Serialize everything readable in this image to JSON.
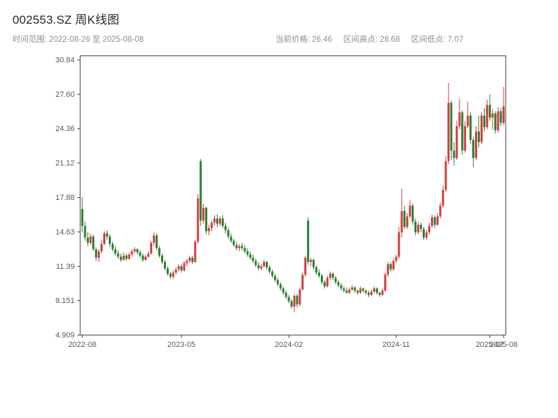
{
  "page": {
    "title": "002553.SZ 周K线图"
  },
  "subheader": {
    "range": "时间范围: 2022-08-26 至 2025-08-08",
    "stats": {
      "current": "当前价格: 26.46",
      "high": "区间高点: 28.68",
      "low": "区间低点: 7.07"
    }
  },
  "chart_data": {
    "type": "candlestick",
    "symbol": "002553.SZ",
    "chart_title": "002553.SZ 周K线图",
    "interval": "weekly",
    "start_date": "2022-08-26",
    "end_date": "2025-08-08",
    "current_price": 26.46,
    "range_high": 28.68,
    "range_low": 7.07,
    "ylim": [
      4.909,
      30.84
    ],
    "grid": false,
    "legend": false,
    "ytick_labels": [
      "30.84",
      "27.60",
      "24.36",
      "21.12",
      "17.88",
      "14.63",
      "11.39",
      "8.151",
      "4.909"
    ],
    "xticks": [
      {
        "pos": 0,
        "label": "2022-08"
      },
      {
        "pos": 36,
        "label": "2023-05"
      },
      {
        "pos": 75,
        "label": "2024-02"
      },
      {
        "pos": 114,
        "label": "2024-11"
      },
      {
        "pos": 148,
        "label": "2025-07"
      },
      {
        "pos": 153,
        "label": "2025-08"
      }
    ],
    "colors": {
      "up": "#cf3d3d",
      "down": "#2e7d32",
      "axis": "#3a3a3a",
      "tick_text": "#595959"
    },
    "candles": [
      [
        16.8,
        17.9,
        14.6,
        15.2
      ],
      [
        15.2,
        15.6,
        13.8,
        14.1
      ],
      [
        14.1,
        14.6,
        13.3,
        13.6
      ],
      [
        13.6,
        14.5,
        13.4,
        14.2
      ],
      [
        14.2,
        14.4,
        12.8,
        13.0
      ],
      [
        13.0,
        13.2,
        11.9,
        12.2
      ],
      [
        12.2,
        13.0,
        11.8,
        12.8
      ],
      [
        12.8,
        13.8,
        12.6,
        13.5
      ],
      [
        13.5,
        14.7,
        13.4,
        14.5
      ],
      [
        14.5,
        14.8,
        13.9,
        14.2
      ],
      [
        14.2,
        14.4,
        13.2,
        13.5
      ],
      [
        13.5,
        13.7,
        12.8,
        13.0
      ],
      [
        13.0,
        13.3,
        12.4,
        12.6
      ],
      [
        12.6,
        12.9,
        12.1,
        12.3
      ],
      [
        12.3,
        12.6,
        11.8,
        12.0
      ],
      [
        12.0,
        12.7,
        11.9,
        12.4
      ],
      [
        12.4,
        12.6,
        11.9,
        12.1
      ],
      [
        12.1,
        12.7,
        12.0,
        12.5
      ],
      [
        12.5,
        13.0,
        12.3,
        12.8
      ],
      [
        12.8,
        13.2,
        12.6,
        13.0
      ],
      [
        13.0,
        13.1,
        12.5,
        12.7
      ],
      [
        12.7,
        12.9,
        12.2,
        12.4
      ],
      [
        12.4,
        12.6,
        11.8,
        12.0
      ],
      [
        12.0,
        12.5,
        11.9,
        12.3
      ],
      [
        12.3,
        12.8,
        12.2,
        12.6
      ],
      [
        12.6,
        13.8,
        12.5,
        13.6
      ],
      [
        13.6,
        14.6,
        13.3,
        14.3
      ],
      [
        14.3,
        14.5,
        12.9,
        13.1
      ],
      [
        13.1,
        13.3,
        12.2,
        12.4
      ],
      [
        12.4,
        12.6,
        11.6,
        11.8
      ],
      [
        11.8,
        12.0,
        11.0,
        11.2
      ],
      [
        11.2,
        11.4,
        10.5,
        10.7
      ],
      [
        10.7,
        10.9,
        10.2,
        10.4
      ],
      [
        10.4,
        11.0,
        10.2,
        10.8
      ],
      [
        10.8,
        11.3,
        10.6,
        11.1
      ],
      [
        11.1,
        11.6,
        10.9,
        11.4
      ],
      [
        11.4,
        11.6,
        10.8,
        11.0
      ],
      [
        11.0,
        11.9,
        10.9,
        11.7
      ],
      [
        11.7,
        12.1,
        11.4,
        11.9
      ],
      [
        11.9,
        12.4,
        11.7,
        12.2
      ],
      [
        12.2,
        12.4,
        11.6,
        11.8
      ],
      [
        11.8,
        13.9,
        11.7,
        13.7
      ],
      [
        13.7,
        18.2,
        13.5,
        17.8
      ],
      [
        21.3,
        21.5,
        15.2,
        15.7
      ],
      [
        15.7,
        17.3,
        15.4,
        16.9
      ],
      [
        16.9,
        17.0,
        14.4,
        14.7
      ],
      [
        14.7,
        15.3,
        14.3,
        15.0
      ],
      [
        15.0,
        15.7,
        14.7,
        15.5
      ],
      [
        15.5,
        16.2,
        15.2,
        15.9
      ],
      [
        15.9,
        16.3,
        15.1,
        15.4
      ],
      [
        15.4,
        16.1,
        15.2,
        15.9
      ],
      [
        15.9,
        16.2,
        15.0,
        15.2
      ],
      [
        15.2,
        15.5,
        14.5,
        14.8
      ],
      [
        14.8,
        15.0,
        14.0,
        14.2
      ],
      [
        14.2,
        14.5,
        13.6,
        13.8
      ],
      [
        13.8,
        14.0,
        13.2,
        13.4
      ],
      [
        13.4,
        13.7,
        12.9,
        13.1
      ],
      [
        13.1,
        13.5,
        12.8,
        13.3
      ],
      [
        13.3,
        13.6,
        12.9,
        13.1
      ],
      [
        13.1,
        13.4,
        12.6,
        12.8
      ],
      [
        12.8,
        13.1,
        12.3,
        12.5
      ],
      [
        12.5,
        12.8,
        12.0,
        12.2
      ],
      [
        12.2,
        12.5,
        11.7,
        11.9
      ],
      [
        11.9,
        12.1,
        11.3,
        11.5
      ],
      [
        11.5,
        11.8,
        11.0,
        11.2
      ],
      [
        11.2,
        11.6,
        11.0,
        11.4
      ],
      [
        11.4,
        12.0,
        11.3,
        11.8
      ],
      [
        11.8,
        11.9,
        11.1,
        11.3
      ],
      [
        11.3,
        11.5,
        10.7,
        10.9
      ],
      [
        10.9,
        11.1,
        10.3,
        10.5
      ],
      [
        10.5,
        10.7,
        9.9,
        10.1
      ],
      [
        10.1,
        10.3,
        9.5,
        9.7
      ],
      [
        9.7,
        9.9,
        9.1,
        9.3
      ],
      [
        9.3,
        9.5,
        8.7,
        8.9
      ],
      [
        8.9,
        9.1,
        8.3,
        8.5
      ],
      [
        8.5,
        8.7,
        7.9,
        8.1
      ],
      [
        8.1,
        8.3,
        7.4,
        7.6
      ],
      [
        7.6,
        8.8,
        7.07,
        8.6
      ],
      [
        8.6,
        8.8,
        7.5,
        7.8
      ],
      [
        7.8,
        9.4,
        7.6,
        9.2
      ],
      [
        9.2,
        10.8,
        9.1,
        10.6
      ],
      [
        10.6,
        12.4,
        10.4,
        12.2
      ],
      [
        15.7,
        16.0,
        11.5,
        11.8
      ],
      [
        11.8,
        12.2,
        11.4,
        12.0
      ],
      [
        12.0,
        12.1,
        11.1,
        11.3
      ],
      [
        11.3,
        11.5,
        10.6,
        10.8
      ],
      [
        10.8,
        11.1,
        10.3,
        10.5
      ],
      [
        10.5,
        10.7,
        9.7,
        9.9
      ],
      [
        9.9,
        10.1,
        9.3,
        9.5
      ],
      [
        9.5,
        10.5,
        9.4,
        10.3
      ],
      [
        10.3,
        10.9,
        10.1,
        10.7
      ],
      [
        10.7,
        10.8,
        10.1,
        10.3
      ],
      [
        10.3,
        10.5,
        9.7,
        9.9
      ],
      [
        9.9,
        10.1,
        9.4,
        9.6
      ],
      [
        9.6,
        9.8,
        9.1,
        9.3
      ],
      [
        9.3,
        9.5,
        8.9,
        9.1
      ],
      [
        9.1,
        9.4,
        8.8,
        8.9
      ],
      [
        8.9,
        9.4,
        8.8,
        9.2
      ],
      [
        9.2,
        9.6,
        9.1,
        9.4
      ],
      [
        9.4,
        9.5,
        8.9,
        9.1
      ],
      [
        9.1,
        9.2,
        8.7,
        8.9
      ],
      [
        8.9,
        9.5,
        8.8,
        9.3
      ],
      [
        9.3,
        9.4,
        8.9,
        9.1
      ],
      [
        9.1,
        9.2,
        8.7,
        8.9
      ],
      [
        8.9,
        9.1,
        8.5,
        8.7
      ],
      [
        8.7,
        9.2,
        8.6,
        9.0
      ],
      [
        9.0,
        9.5,
        8.9,
        9.3
      ],
      [
        9.3,
        9.4,
        8.7,
        8.9
      ],
      [
        8.9,
        9.0,
        8.5,
        8.7
      ],
      [
        8.7,
        9.3,
        8.6,
        9.1
      ],
      [
        9.1,
        10.8,
        9.0,
        10.6
      ],
      [
        10.6,
        11.8,
        10.4,
        11.6
      ],
      [
        11.6,
        11.8,
        10.9,
        11.1
      ],
      [
        11.1,
        12.1,
        11.0,
        11.9
      ],
      [
        11.9,
        12.5,
        11.7,
        12.3
      ],
      [
        12.3,
        15.1,
        12.1,
        14.6
      ],
      [
        14.6,
        18.7,
        14.1,
        16.6
      ],
      [
        16.6,
        17.1,
        14.9,
        15.1
      ],
      [
        15.1,
        16.4,
        14.9,
        16.1
      ],
      [
        16.1,
        17.6,
        15.9,
        17.1
      ],
      [
        17.1,
        17.3,
        15.3,
        15.6
      ],
      [
        15.6,
        15.9,
        14.3,
        14.6
      ],
      [
        14.6,
        15.6,
        14.4,
        15.3
      ],
      [
        15.3,
        15.5,
        14.6,
        14.9
      ],
      [
        14.9,
        15.1,
        13.9,
        14.1
      ],
      [
        14.1,
        14.8,
        13.9,
        14.6
      ],
      [
        14.6,
        15.5,
        14.4,
        15.2
      ],
      [
        15.2,
        16.3,
        15.0,
        16.0
      ],
      [
        16.0,
        16.2,
        15.0,
        15.3
      ],
      [
        15.3,
        16.4,
        15.2,
        16.1
      ],
      [
        16.1,
        17.4,
        15.9,
        17.1
      ],
      [
        17.1,
        19.0,
        16.9,
        18.6
      ],
      [
        18.6,
        21.8,
        18.4,
        21.3
      ],
      [
        21.3,
        28.68,
        21.0,
        26.8
      ],
      [
        26.8,
        27.0,
        21.4,
        22.3
      ],
      [
        22.3,
        23.1,
        20.9,
        21.6
      ],
      [
        21.6,
        25.1,
        21.4,
        24.6
      ],
      [
        24.6,
        27.2,
        24.3,
        25.9
      ],
      [
        25.9,
        26.1,
        21.9,
        22.3
      ],
      [
        22.3,
        25.1,
        22.1,
        24.6
      ],
      [
        24.6,
        26.9,
        24.4,
        25.6
      ],
      [
        25.6,
        25.9,
        22.9,
        23.3
      ],
      [
        23.3,
        23.6,
        20.7,
        21.6
      ],
      [
        21.6,
        24.6,
        21.4,
        24.1
      ],
      [
        24.1,
        25.6,
        22.6,
        23.1
      ],
      [
        23.1,
        25.9,
        22.9,
        25.6
      ],
      [
        25.6,
        26.3,
        24.1,
        24.5
      ],
      [
        24.5,
        27.1,
        24.3,
        26.6
      ],
      [
        26.6,
        27.6,
        25.1,
        25.4
      ],
      [
        25.4,
        26.2,
        24.3,
        25.8
      ],
      [
        25.8,
        26.0,
        23.9,
        24.2
      ],
      [
        24.2,
        26.4,
        24.0,
        26.0
      ],
      [
        26.0,
        26.3,
        24.6,
        24.9
      ],
      [
        24.9,
        28.3,
        24.7,
        26.46
      ]
    ]
  }
}
